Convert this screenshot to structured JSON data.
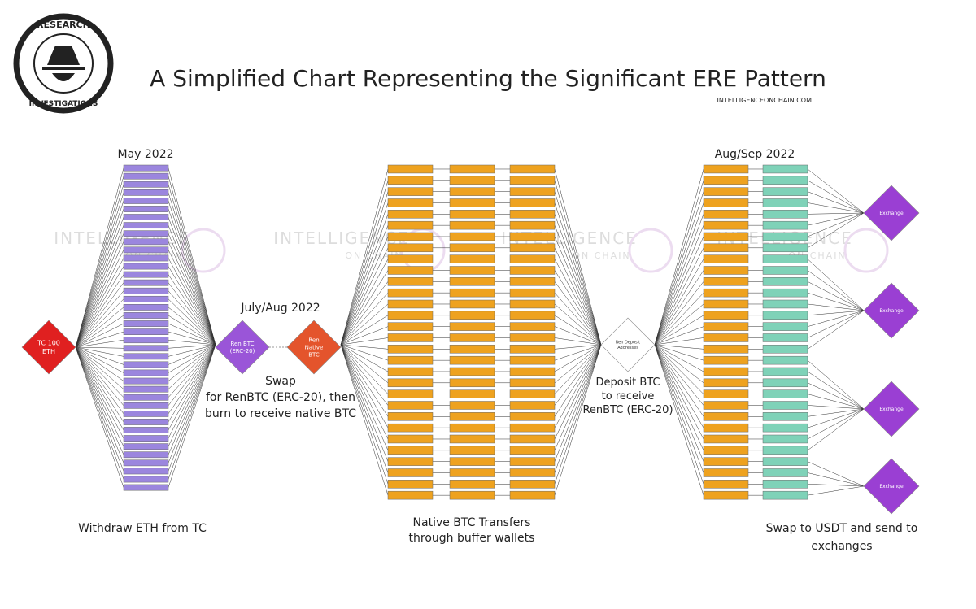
{
  "header": {
    "title": "A Simplified Chart Representing the Significant ERE Pattern",
    "subtitle": "INTELLIGENCEONCHAIN.COM",
    "logo": [
      "RESEARCH",
      "INVESTIGATIONS"
    ]
  },
  "watermark": [
    "INTELLIGENCE",
    "ON CHAIN"
  ],
  "periods": [
    "May 2022",
    "July/Aug 2022",
    "Aug/Sep 2022"
  ],
  "nodes": [
    {
      "label": [
        "TC 100",
        "ETH"
      ]
    },
    {
      "label": [
        "Ren BTC",
        "(ERC-20)"
      ]
    },
    {
      "label": [
        "Ren",
        "Native",
        "BTC"
      ]
    },
    {
      "label": [
        "Ren Deposit",
        "Addresses"
      ]
    },
    {
      "label": [
        "Exchange"
      ]
    },
    {
      "label": [
        "Exchange"
      ]
    },
    {
      "label": [
        "Exchange"
      ]
    },
    {
      "label": [
        "Exchange"
      ]
    }
  ],
  "captions": [
    [
      "Withdraw ETH from TC"
    ],
    [
      "Swap",
      "for RenBTC (ERC-20), then",
      "burn to receive native BTC"
    ],
    [
      "Native BTC Transfers",
      "through buffer wallets"
    ],
    [
      "Deposit BTC",
      "to receive",
      "RenBTC (ERC-20)"
    ],
    [
      "Swap to USDT and send to",
      "exchanges"
    ]
  ]
}
